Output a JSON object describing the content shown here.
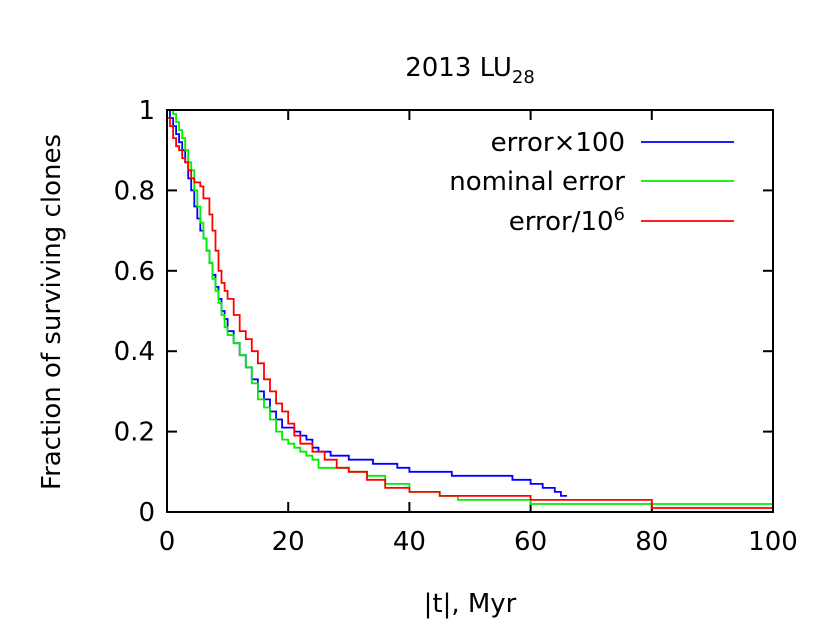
{
  "chart_data": {
    "type": "line",
    "title": {
      "main": "2013 LU",
      "sub": "28"
    },
    "xlabel": "|t|, Myr",
    "ylabel": "Fraction of surviving clones",
    "xlim": [
      0,
      100
    ],
    "ylim": [
      0,
      1
    ],
    "xticks": [
      0,
      20,
      40,
      60,
      80,
      100
    ],
    "xtick_labels": [
      "0",
      "20",
      "40",
      "60",
      "80",
      "100"
    ],
    "yticks": [
      0,
      0.2,
      0.4,
      0.6,
      0.8,
      1
    ],
    "ytick_labels": [
      "0",
      "0.2",
      "0.4",
      "0.6",
      "0.8",
      "1"
    ],
    "grid": false,
    "legend_position": "top-right",
    "series": [
      {
        "name": "error×100",
        "legend": {
          "text": "error×100",
          "sup": ""
        },
        "color": "#0000ff",
        "x": [
          0,
          0.5,
          1,
          1.5,
          2,
          2.5,
          3,
          3.5,
          4,
          4.5,
          5,
          5.5,
          6,
          6.5,
          7,
          7.5,
          8,
          8.5,
          9,
          9.5,
          10,
          11,
          12,
          13,
          14,
          15,
          16,
          17,
          18,
          19,
          20,
          21,
          22,
          23,
          24,
          25,
          26,
          27,
          28,
          30,
          32,
          34,
          36,
          38,
          40,
          44,
          47,
          52,
          57,
          60,
          62,
          64,
          65,
          66
        ],
        "y": [
          1,
          0.98,
          0.96,
          0.94,
          0.92,
          0.9,
          0.87,
          0.83,
          0.8,
          0.76,
          0.73,
          0.7,
          0.68,
          0.65,
          0.62,
          0.59,
          0.56,
          0.53,
          0.5,
          0.48,
          0.45,
          0.42,
          0.39,
          0.36,
          0.33,
          0.3,
          0.28,
          0.25,
          0.23,
          0.21,
          0.21,
          0.2,
          0.19,
          0.18,
          0.16,
          0.15,
          0.15,
          0.14,
          0.14,
          0.13,
          0.13,
          0.12,
          0.12,
          0.11,
          0.1,
          0.1,
          0.09,
          0.09,
          0.08,
          0.07,
          0.06,
          0.05,
          0.04,
          0.04
        ]
      },
      {
        "name": "nominal error",
        "legend": {
          "text": "nominal error",
          "sup": ""
        },
        "color": "#00ee00",
        "x": [
          0,
          0.5,
          1,
          1.5,
          2,
          2.5,
          3,
          3.5,
          4,
          4.5,
          5,
          5.5,
          6,
          6.5,
          7,
          7.5,
          8,
          8.5,
          9,
          9.5,
          10,
          11,
          12,
          13,
          14,
          15,
          16,
          17,
          18,
          19,
          20,
          21,
          22,
          23,
          24,
          25,
          27,
          30,
          33,
          36,
          40,
          45,
          48,
          55,
          60,
          70,
          80,
          100
        ],
        "y": [
          1,
          1,
          0.99,
          0.97,
          0.95,
          0.93,
          0.9,
          0.87,
          0.85,
          0.8,
          0.76,
          0.72,
          0.68,
          0.65,
          0.62,
          0.58,
          0.55,
          0.52,
          0.49,
          0.46,
          0.44,
          0.42,
          0.39,
          0.36,
          0.32,
          0.28,
          0.26,
          0.23,
          0.2,
          0.18,
          0.17,
          0.16,
          0.15,
          0.14,
          0.13,
          0.11,
          0.11,
          0.1,
          0.09,
          0.07,
          0.05,
          0.04,
          0.03,
          0.03,
          0.02,
          0.02,
          0.02,
          0.02
        ]
      },
      {
        "name": "error/10^6",
        "legend": {
          "text": "error/10",
          "sup": "6"
        },
        "color": "#ff0000",
        "x": [
          0,
          0.5,
          1,
          1.5,
          2,
          2.5,
          3,
          3.5,
          4,
          4.5,
          5,
          5.5,
          6,
          7,
          7.5,
          8,
          8.5,
          9,
          9.5,
          10,
          11,
          12,
          13,
          14,
          15,
          16,
          17,
          18,
          19,
          20,
          21,
          22,
          24,
          26,
          28,
          30,
          33,
          36,
          40,
          45,
          50,
          60,
          70,
          79,
          80,
          90,
          100
        ],
        "y": [
          0.98,
          0.96,
          0.93,
          0.91,
          0.9,
          0.88,
          0.87,
          0.85,
          0.83,
          0.82,
          0.82,
          0.81,
          0.78,
          0.74,
          0.7,
          0.65,
          0.6,
          0.57,
          0.55,
          0.53,
          0.49,
          0.45,
          0.43,
          0.4,
          0.37,
          0.33,
          0.3,
          0.27,
          0.25,
          0.22,
          0.19,
          0.17,
          0.15,
          0.13,
          0.11,
          0.1,
          0.08,
          0.06,
          0.05,
          0.04,
          0.04,
          0.03,
          0.03,
          0.03,
          0.01,
          0.01,
          0.01
        ]
      }
    ]
  }
}
